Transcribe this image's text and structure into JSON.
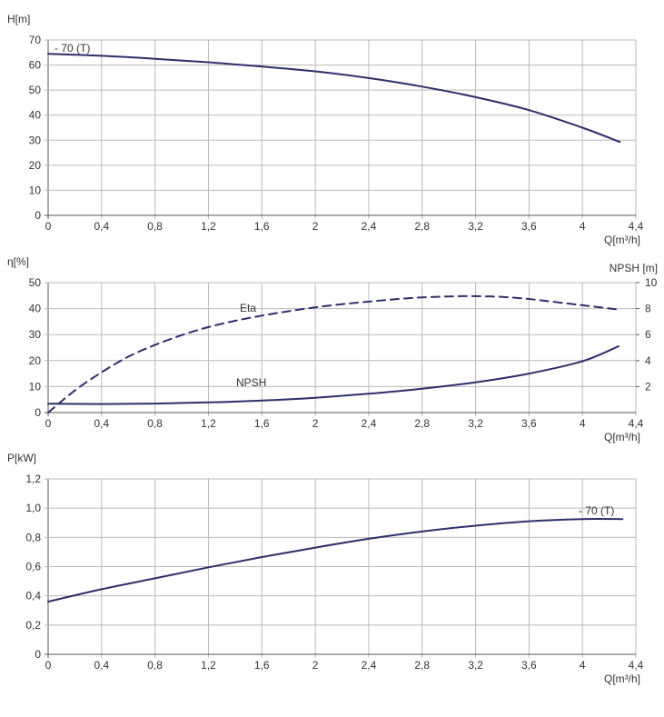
{
  "chart_data": [
    {
      "type": "line",
      "ylabel": "H[m]",
      "xlabel": "Q[m³/h]",
      "xlim": [
        0,
        4.4
      ],
      "ylim": [
        0,
        70
      ],
      "x_ticks": [
        "0",
        "0,4",
        "0,8",
        "1,2",
        "1,6",
        "2",
        "2,4",
        "2,8",
        "3,2",
        "3,6",
        "4",
        "4,4"
      ],
      "y_ticks": [
        "0",
        "10",
        "20",
        "30",
        "40",
        "50",
        "60",
        "70"
      ],
      "grid": true,
      "annotation": "- 70 (T)",
      "series": [
        {
          "name": "70 (T)",
          "color": "#2e2e6b",
          "x": [
            0,
            0.4,
            0.8,
            1.2,
            1.6,
            2.0,
            2.4,
            2.8,
            3.2,
            3.6,
            4.0,
            4.28
          ],
          "y": [
            64.5,
            63.7,
            62.5,
            61.1,
            59.4,
            57.5,
            54.8,
            51.4,
            47.2,
            42.0,
            35.0,
            29.3
          ]
        }
      ]
    },
    {
      "type": "line",
      "ylabel": "η[%]",
      "y2label": "NPSH [m]",
      "xlabel": "Q[m³/h]",
      "xlim": [
        0,
        4.4
      ],
      "ylim": [
        0,
        50
      ],
      "y2lim": [
        0,
        10
      ],
      "x_ticks": [
        "0",
        "0,4",
        "0,8",
        "1,2",
        "1,6",
        "2",
        "2,4",
        "2,8",
        "3,2",
        "3,6",
        "4",
        "4,4"
      ],
      "y_ticks": [
        "0",
        "10",
        "20",
        "30",
        "40",
        "50"
      ],
      "y2_ticks": [
        "2",
        "4",
        "6",
        "8",
        "10"
      ],
      "grid": true,
      "series": [
        {
          "name": "Eta",
          "axis": "left",
          "dashed": true,
          "color": "#2e2e6b",
          "x": [
            0,
            0.2,
            0.4,
            0.6,
            0.8,
            1.0,
            1.2,
            1.4,
            1.6,
            1.8,
            2.0,
            2.2,
            2.4,
            2.6,
            2.8,
            3.0,
            3.2,
            3.4,
            3.6,
            3.8,
            4.0,
            4.25
          ],
          "y": [
            0,
            8.5,
            15.5,
            21.5,
            26.0,
            29.8,
            32.9,
            35.3,
            37.3,
            39.0,
            40.5,
            41.7,
            42.7,
            43.6,
            44.3,
            44.7,
            44.8,
            44.5,
            43.7,
            42.5,
            41.3,
            39.8
          ]
        },
        {
          "name": "NPSH",
          "axis": "right",
          "dashed": false,
          "color": "#2e2e6b",
          "x": [
            0,
            0.4,
            0.8,
            1.2,
            1.6,
            2.0,
            2.4,
            2.8,
            3.2,
            3.6,
            4.0,
            4.27
          ],
          "y": [
            0.68,
            0.66,
            0.69,
            0.78,
            0.92,
            1.14,
            1.45,
            1.84,
            2.33,
            3.0,
            3.95,
            5.1
          ]
        }
      ]
    },
    {
      "type": "line",
      "ylabel": "P[kW]",
      "xlabel": "Q[m³/h]",
      "xlim": [
        0,
        4.4
      ],
      "ylim": [
        0,
        1.2
      ],
      "x_ticks": [
        "0",
        "0,4",
        "0,8",
        "1,2",
        "1,6",
        "2",
        "2,4",
        "2,8",
        "3,2",
        "3,6",
        "4",
        "4,4"
      ],
      "y_ticks": [
        "0",
        "0,2",
        "0,4",
        "0,6",
        "0,8",
        "1,0",
        "1,2"
      ],
      "grid": true,
      "annotation": "- 70 (T)",
      "series": [
        {
          "name": "70 (T)",
          "color": "#2e2e6b",
          "x": [
            0,
            0.4,
            0.8,
            1.2,
            1.6,
            2.0,
            2.4,
            2.8,
            3.2,
            3.6,
            4.0,
            4.3
          ],
          "y": [
            0.36,
            0.445,
            0.52,
            0.595,
            0.665,
            0.73,
            0.79,
            0.84,
            0.88,
            0.91,
            0.925,
            0.925
          ]
        }
      ]
    }
  ]
}
